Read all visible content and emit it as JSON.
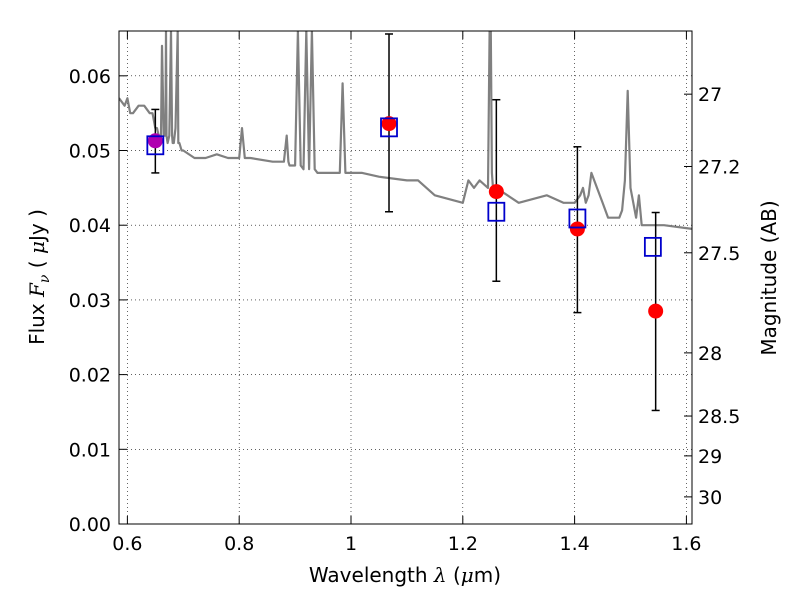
{
  "chart_data": {
    "type": "scatter",
    "title": "",
    "xlabel": {
      "prefix": "Wavelength ",
      "symbol": "λ",
      "unit_open": " (",
      "unit_mu": "μ",
      "unit_rest": "m)"
    },
    "ylabel": {
      "prefix": "Flux  ",
      "symbol": "F",
      "sub": "ν",
      "unit_open": "  ( ",
      "unit_mu": "μ",
      "unit_rest": "Jy )"
    },
    "y2label": "Magnitude (AB)",
    "xlim": [
      0.585,
      1.61
    ],
    "ylim": [
      0.0,
      0.066
    ],
    "grid": true,
    "x_ticks": [
      {
        "value": 0.6,
        "label": "0.6"
      },
      {
        "value": 0.8,
        "label": "0.8"
      },
      {
        "value": 1.0,
        "label": "1"
      },
      {
        "value": 1.2,
        "label": "1.2"
      },
      {
        "value": 1.4,
        "label": "1.4"
      },
      {
        "value": 1.6,
        "label": "1.6"
      }
    ],
    "y_ticks": [
      {
        "value": 0.0,
        "label": "0.00"
      },
      {
        "value": 0.01,
        "label": "0.01"
      },
      {
        "value": 0.02,
        "label": "0.02"
      },
      {
        "value": 0.03,
        "label": "0.03"
      },
      {
        "value": 0.04,
        "label": "0.04"
      },
      {
        "value": 0.05,
        "label": "0.05"
      },
      {
        "value": 0.06,
        "label": "0.06"
      }
    ],
    "mag_ticks": [
      {
        "value": 27,
        "label": "27"
      },
      {
        "value": 27.2,
        "label": "27.2"
      },
      {
        "value": 27.5,
        "label": "27.5"
      },
      {
        "value": 28,
        "label": "28"
      },
      {
        "value": 28.5,
        "label": "28.5"
      },
      {
        "value": 29,
        "label": "29"
      },
      {
        "value": 30,
        "label": "30"
      }
    ],
    "series": [
      {
        "kind": "model-spectrum",
        "color": "#808080",
        "x": [
          0.585,
          0.595,
          0.6,
          0.605,
          0.61,
          0.62,
          0.63,
          0.64,
          0.645,
          0.65,
          0.653,
          0.656,
          0.658,
          0.66,
          0.662,
          0.665,
          0.668,
          0.669,
          0.67,
          0.672,
          0.675,
          0.678,
          0.68,
          0.681,
          0.683,
          0.686,
          0.69,
          0.691,
          0.693,
          0.697,
          0.7,
          0.72,
          0.74,
          0.76,
          0.78,
          0.8,
          0.805,
          0.81,
          0.815,
          0.82,
          0.86,
          0.88,
          0.885,
          0.888,
          0.89,
          0.9,
          0.905,
          0.91,
          0.915,
          0.92,
          0.925,
          0.93,
          0.935,
          0.94,
          0.97,
          0.98,
          0.985,
          0.99,
          1.0,
          1.02,
          1.05,
          1.1,
          1.12,
          1.15,
          1.2,
          1.21,
          1.22,
          1.23,
          1.245,
          1.248,
          1.25,
          1.252,
          1.255,
          1.26,
          1.3,
          1.35,
          1.38,
          1.4,
          1.41,
          1.415,
          1.42,
          1.425,
          1.43,
          1.45,
          1.46,
          1.475,
          1.48,
          1.485,
          1.49,
          1.495,
          1.5,
          1.51,
          1.515,
          1.52,
          1.53,
          1.56,
          1.61
        ],
        "y": [
          0.057,
          0.056,
          0.057,
          0.055,
          0.055,
          0.056,
          0.056,
          0.055,
          0.055,
          0.053,
          0.053,
          0.052,
          0.052,
          0.051,
          0.064,
          0.052,
          0.052,
          0.066,
          0.052,
          0.051,
          0.052,
          0.066,
          0.052,
          0.051,
          0.051,
          0.053,
          0.066,
          0.051,
          0.051,
          0.05,
          0.05,
          0.049,
          0.049,
          0.0495,
          0.049,
          0.049,
          0.053,
          0.049,
          0.049,
          0.049,
          0.0485,
          0.0485,
          0.052,
          0.0485,
          0.048,
          0.048,
          0.066,
          0.048,
          0.0475,
          0.066,
          0.0475,
          0.066,
          0.0475,
          0.047,
          0.047,
          0.047,
          0.059,
          0.047,
          0.047,
          0.047,
          0.0465,
          0.046,
          0.046,
          0.044,
          0.043,
          0.046,
          0.045,
          0.046,
          0.045,
          0.066,
          0.066,
          0.047,
          0.044,
          0.045,
          0.043,
          0.044,
          0.043,
          0.043,
          0.044,
          0.045,
          0.043,
          0.044,
          0.047,
          0.043,
          0.041,
          0.041,
          0.041,
          0.042,
          0.046,
          0.058,
          0.045,
          0.041,
          0.044,
          0.04,
          0.04,
          0.04,
          0.0395
        ]
      },
      {
        "kind": "observed",
        "marker": "filled-circle",
        "color": "#ff0000",
        "x": [
          0.65,
          1.068,
          1.26,
          1.405,
          1.545
        ],
        "y": [
          0.0513,
          0.0536,
          0.0445,
          0.0395,
          0.0285
        ],
        "yerr_low": [
          0.047,
          0.0418,
          0.0325,
          0.0283,
          0.0152
        ],
        "yerr_high": [
          0.0555,
          0.0656,
          0.0568,
          0.0505,
          0.0417
        ]
      },
      {
        "kind": "model-photometry",
        "marker": "open-square",
        "color": "#0000cc",
        "x": [
          0.65,
          1.068,
          1.26,
          1.405,
          1.54
        ],
        "y": [
          0.0507,
          0.0531,
          0.0418,
          0.0409,
          0.0371
        ]
      }
    ],
    "colors": {
      "overlap": "#b000b0",
      "errorbar": "#000000",
      "grid": "#000000"
    }
  }
}
